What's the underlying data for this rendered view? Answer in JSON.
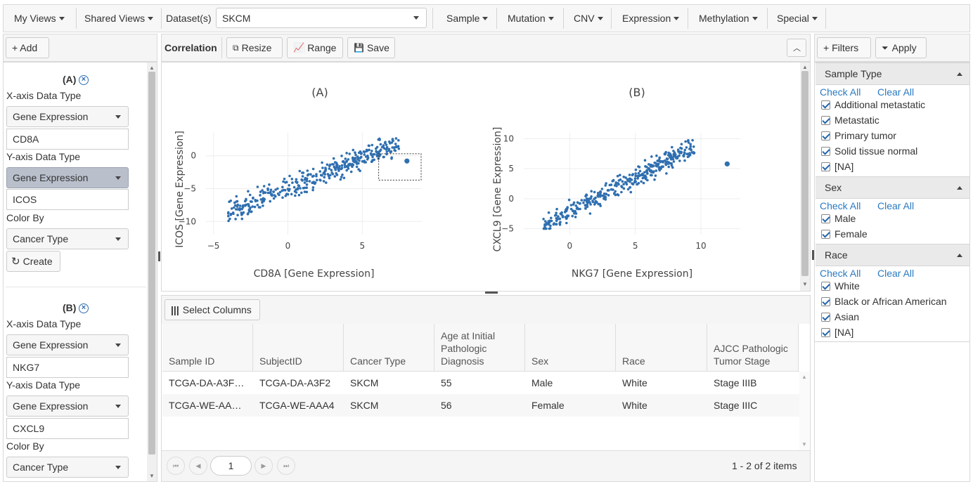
{
  "topbar": {
    "my_views": "My Views",
    "shared_views": "Shared Views",
    "dataset_label": "Dataset(s)",
    "dataset_value": "SKCM",
    "menus": [
      "Sample",
      "Mutation",
      "CNV",
      "Expression",
      "Methylation",
      "Special"
    ]
  },
  "left": {
    "add": "+ Add",
    "blocks": [
      {
        "title": "(A)",
        "x_label": "X-axis Data Type",
        "x_type": "Gene Expression",
        "x_gene": "CD8A",
        "y_label": "Y-axis Data Type",
        "y_type": "Gene Expression",
        "y_gene": "ICOS",
        "color_label": "Color By",
        "color_value": "Cancer Type",
        "create": "Create"
      },
      {
        "title": "(B)",
        "x_label": "X-axis Data Type",
        "x_type": "Gene Expression",
        "x_gene": "NKG7",
        "y_label": "Y-axis Data Type",
        "y_type": "Gene Expression",
        "y_gene": "CXCL9",
        "color_label": "Color By",
        "color_value": "Cancer Type"
      }
    ]
  },
  "center": {
    "title": "Correlation",
    "resize": "Resize",
    "range": "Range",
    "save": "Save"
  },
  "chart_data": [
    {
      "type": "scatter",
      "title": "(A)",
      "xlabel": "CD8A [Gene Expression]",
      "ylabel": "ICOS [Gene Expression]",
      "xlim": [
        -5.5,
        9
      ],
      "ylim": [
        -12,
        3.5
      ],
      "xticks": [
        -5,
        0,
        5
      ],
      "yticks": [
        0,
        -5,
        -10
      ],
      "color": "#2f6fb0",
      "highlight": [
        8,
        -0.8
      ]
    },
    {
      "type": "scatter",
      "title": "(B)",
      "xlabel": "NKG7 [Gene Expression]",
      "ylabel": "CXCL9 [Gene Expression]",
      "xlim": [
        -3.5,
        13
      ],
      "ylim": [
        -6,
        11
      ],
      "xticks": [
        0,
        5,
        10
      ],
      "yticks": [
        10,
        5,
        0,
        -5
      ],
      "color": "#2f6fb0",
      "highlight": [
        12,
        5.8
      ]
    }
  ],
  "table": {
    "select_columns": "Select Columns",
    "headers": [
      "Sample ID",
      "SubjectID",
      "Cancer Type",
      "Age at Initial Pathologic Diagnosis",
      "Sex",
      "Race",
      "AJCC Pathologic Tumor Stage"
    ],
    "rows": [
      [
        "TCGA-DA-A3F…",
        "TCGA-DA-A3F2",
        "SKCM",
        "55",
        "Male",
        "White",
        "Stage IIIB"
      ],
      [
        "TCGA-WE-AA…",
        "TCGA-WE-AAA4",
        "SKCM",
        "56",
        "Female",
        "White",
        "Stage IIIC"
      ]
    ],
    "page": "1",
    "summary": "1 - 2 of 2 items"
  },
  "filters": {
    "add": "+ Filters",
    "apply": "Apply",
    "check_all": "Check All",
    "clear_all": "Clear All",
    "groups": [
      {
        "title": "Sample Type",
        "items": [
          "Additional metastatic",
          "Metastatic",
          "Primary tumor",
          "Solid tissue normal",
          "[NA]"
        ]
      },
      {
        "title": "Sex",
        "items": [
          "Male",
          "Female"
        ]
      },
      {
        "title": "Race",
        "items": [
          "White",
          "Black or African American",
          "Asian",
          "[NA]"
        ]
      }
    ]
  }
}
